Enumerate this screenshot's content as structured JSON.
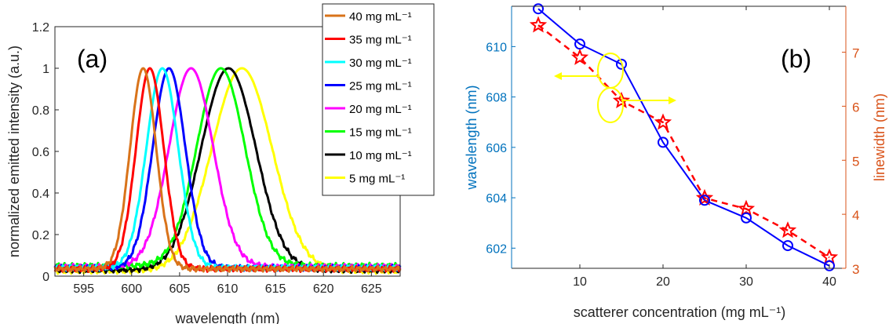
{
  "chart_data": [
    {
      "type": "line",
      "panel_label": "(a)",
      "xlabel": "wavelength (nm)",
      "ylabel": "normalized emitted intensity (a.u.)",
      "xlim": [
        592,
        628
      ],
      "ylim": [
        0,
        1.2
      ],
      "xticks": [
        "595",
        "600",
        "605",
        "610",
        "615",
        "620",
        "625"
      ],
      "yticks": [
        "0",
        "0.2",
        "0.4",
        "0.6",
        "0.8",
        "1",
        "1.2"
      ],
      "legend_position": "top-right, outside plot",
      "grid": false,
      "series": [
        {
          "name": "40 mg mL⁻¹",
          "color": "#D9731A",
          "peak": 601.2,
          "fwhm": 3.2,
          "baseline": 0.035
        },
        {
          "name": "35 mg mL⁻¹",
          "color": "#FF0000",
          "peak": 601.9,
          "fwhm": 3.4,
          "baseline": 0.035
        },
        {
          "name": "30 mg mL⁻¹",
          "color": "#00FFFF",
          "peak": 603.2,
          "fwhm": 3.9,
          "baseline": 0.04
        },
        {
          "name": "25 mg mL⁻¹",
          "color": "#0000FF",
          "peak": 603.9,
          "fwhm": 4.0,
          "baseline": 0.04
        },
        {
          "name": "20 mg mL⁻¹",
          "color": "#FF00FF",
          "peak": 606.2,
          "fwhm": 5.4,
          "baseline": 0.045
        },
        {
          "name": "15 mg mL⁻¹",
          "color": "#00FF00",
          "peak": 609.3,
          "fwhm": 5.9,
          "baseline": 0.05
        },
        {
          "name": "10 mg mL⁻¹",
          "color": "#000000",
          "peak": 610.1,
          "fwhm": 6.7,
          "baseline": 0.03
        },
        {
          "name": "5 mg mL⁻¹",
          "color": "#FFFF00",
          "peak": 611.5,
          "fwhm": 7.4,
          "baseline": 0.025
        }
      ]
    },
    {
      "type": "line",
      "panel_label": "(b)",
      "xlabel": "scatterer concentration (mg mL⁻¹)",
      "ylabel": "wavelength (nm)",
      "y2label": "linewidth (nm)",
      "xlim": [
        5,
        40
      ],
      "ylim": [
        601.2,
        611.6
      ],
      "y2lim": [
        3,
        7.85
      ],
      "xticks": [
        "10",
        "20",
        "30",
        "40"
      ],
      "yticks": [
        "602",
        "604",
        "606",
        "608",
        "610"
      ],
      "y2ticks": [
        "3",
        "4",
        "5",
        "6",
        "7"
      ],
      "x": [
        5,
        10,
        15,
        20,
        25,
        30,
        35,
        40
      ],
      "series": [
        {
          "name": "wavelength",
          "axis": "left",
          "color": "#0000FF",
          "marker": "circle",
          "line": "solid",
          "values": [
            611.5,
            610.1,
            609.3,
            606.2,
            603.9,
            603.2,
            602.1,
            601.3
          ]
        },
        {
          "name": "linewidth",
          "axis": "right",
          "color": "#FF0000",
          "marker": "star",
          "line": "dashed",
          "values": [
            7.5,
            6.9,
            6.1,
            5.7,
            4.3,
            4.1,
            3.7,
            3.2
          ]
        }
      ],
      "left_axis_color": "#0072BD",
      "right_axis_color": "#D95319",
      "annotation_color": "#FFFF00"
    }
  ]
}
